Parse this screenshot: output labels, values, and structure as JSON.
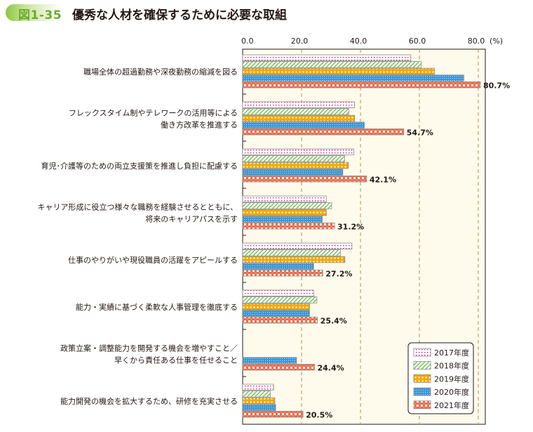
{
  "figure_number": "図1-35",
  "title": "優秀な人材を確保するために必要な取組",
  "chart_data": {
    "type": "bar",
    "orientation": "horizontal",
    "title": "優秀な人材を確保するために必要な取組",
    "xlabel": "(%)",
    "xlim": [
      0,
      80
    ],
    "xticks": [
      "0.0",
      "20.0",
      "40.0",
      "60.0",
      "80.0"
    ],
    "grid": true,
    "legend_position": "bottom-right",
    "categories": [
      [
        "職場全体の超過勤務や深夜勤務の縮減を図る"
      ],
      [
        "フレックスタイム制やテレワークの活用等による",
        "働き方改革を推進する"
      ],
      [
        "育児･介護等のための両立支援策を推進し負担に配慮する"
      ],
      [
        "キャリア形成に役立つ様々な職務を経験させるとともに、",
        "将来のキャリアパスを示す"
      ],
      [
        "仕事のやりがいや現役職員の活躍をアピールする"
      ],
      [
        "能力・実績に基づく柔軟な人事管理を徹底する"
      ],
      [
        "政策立案・調整能力を開発する機会を増やすこと／",
        "早くから責任ある仕事を任せること"
      ],
      [
        "能力開発の機会を拡大するため、研修を充実させる"
      ]
    ],
    "series": [
      {
        "name": "2017年度",
        "color": "#e4007f",
        "pattern": "dots-pink",
        "values": [
          57.1,
          38.0,
          37.7,
          28.4,
          37.1,
          24.1,
          null,
          10.5
        ]
      },
      {
        "name": "2018年度",
        "color": "#6ab845",
        "pattern": "diagonal-green",
        "values": [
          60.6,
          36.0,
          34.6,
          30.2,
          33.2,
          25.2,
          null,
          9.4
        ]
      },
      {
        "name": "2019年度",
        "color": "#f5a800",
        "pattern": "checker-orange",
        "values": [
          65.1,
          38.0,
          35.9,
          28.4,
          34.7,
          22.7,
          null,
          10.9
        ]
      },
      {
        "name": "2020年度",
        "color": "#3c96d6",
        "pattern": "mesh-blue",
        "values": [
          75.1,
          41.3,
          34.0,
          27.0,
          24.1,
          22.7,
          18.3,
          11.2
        ]
      },
      {
        "name": "2021年度",
        "color": "#ea6b4a",
        "pattern": "checker-red",
        "values": [
          80.7,
          54.7,
          42.1,
          31.2,
          27.2,
          25.4,
          24.4,
          20.5
        ]
      }
    ],
    "data_labels": [
      "80.7%",
      "54.7%",
      "42.1%",
      "31.2%",
      "27.2%",
      "25.4%",
      "24.4%",
      "20.5%"
    ]
  }
}
